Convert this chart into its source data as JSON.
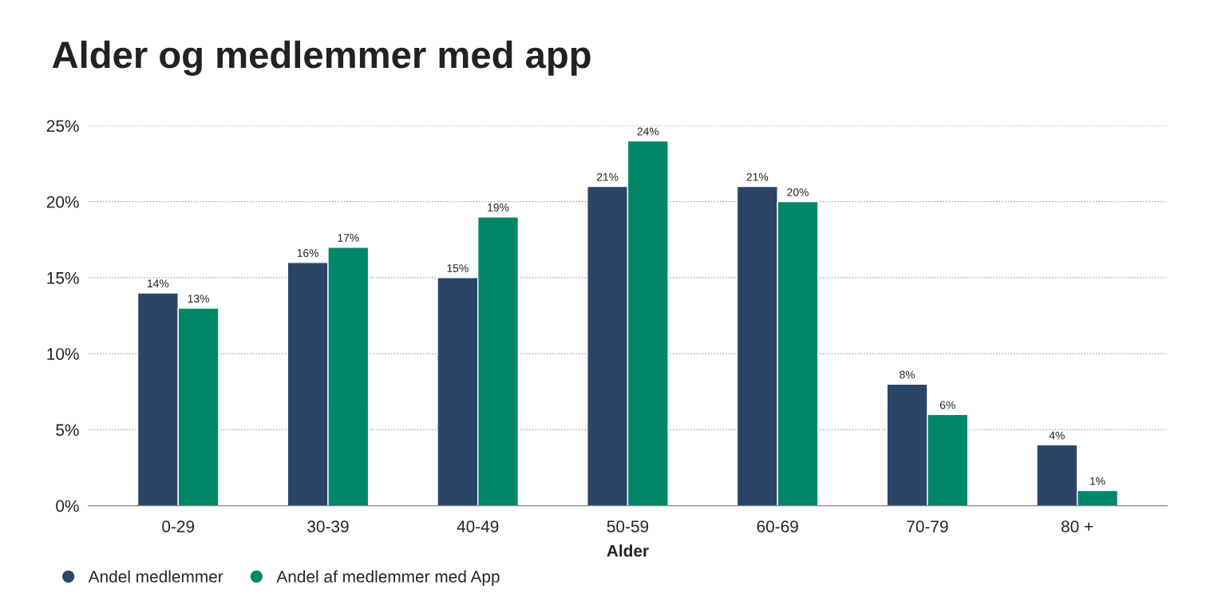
{
  "chart_data": {
    "type": "bar",
    "title": "Alder og medlemmer med app",
    "xlabel": "Alder",
    "categories": [
      "0-29",
      "30-39",
      "40-49",
      "50-59",
      "60-69",
      "70-79",
      "80 +"
    ],
    "series": [
      {
        "name": "Andel medlemmer",
        "color": "#2b4569",
        "values": [
          14,
          16,
          15,
          21,
          21,
          8,
          4
        ],
        "value_labels": [
          "14%",
          "16%",
          "15%",
          "21%",
          "21%",
          "8%",
          "4%"
        ]
      },
      {
        "name": "Andel af medlemmer med App",
        "color": "#00876a",
        "values": [
          13,
          17,
          19,
          24,
          20,
          6,
          1
        ],
        "value_labels": [
          "13%",
          "17%",
          "19%",
          "24%",
          "20%",
          "6%",
          "1%"
        ]
      }
    ],
    "ylim": [
      0,
      25
    ],
    "yticks": [
      {
        "value": 0,
        "label": "0%"
      },
      {
        "value": 5,
        "label": "5%"
      },
      {
        "value": 10,
        "label": "10%"
      },
      {
        "value": 15,
        "label": "15%"
      },
      {
        "value": 20,
        "label": "20%"
      },
      {
        "value": 25,
        "label": "25%"
      }
    ],
    "grid": "y",
    "legend": "bottom left"
  }
}
